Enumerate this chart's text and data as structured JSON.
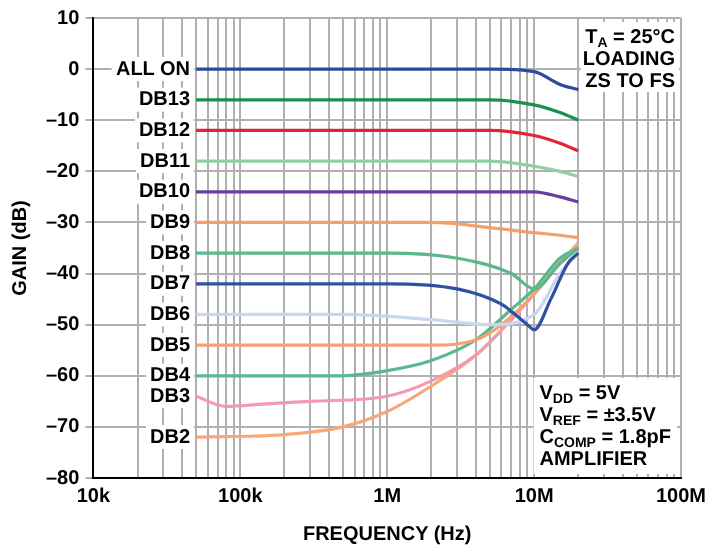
{
  "chart_data": {
    "type": "line",
    "xlabel": "FREQUENCY (Hz)",
    "ylabel": "GAIN (dB)",
    "log": "x",
    "grid": true,
    "legend": false,
    "marker": "none",
    "line_style": "solid",
    "xlim": [
      10000,
      100000000
    ],
    "ylim": [
      -80,
      10
    ],
    "xticks": [
      {
        "value": 10000,
        "label": "10k"
      },
      {
        "value": 20000,
        "label": null
      },
      {
        "value": 30000,
        "label": null
      },
      {
        "value": 40000,
        "label": null
      },
      {
        "value": 50000,
        "label": null
      },
      {
        "value": 60000,
        "label": null
      },
      {
        "value": 70000,
        "label": null
      },
      {
        "value": 80000,
        "label": null
      },
      {
        "value": 90000,
        "label": null
      },
      {
        "value": 100000,
        "label": "100k"
      },
      {
        "value": 200000,
        "label": null
      },
      {
        "value": 300000,
        "label": null
      },
      {
        "value": 400000,
        "label": null
      },
      {
        "value": 500000,
        "label": null
      },
      {
        "value": 600000,
        "label": null
      },
      {
        "value": 700000,
        "label": null
      },
      {
        "value": 800000,
        "label": null
      },
      {
        "value": 900000,
        "label": null
      },
      {
        "value": 1000000,
        "label": "1M"
      },
      {
        "value": 2000000,
        "label": null
      },
      {
        "value": 3000000,
        "label": null
      },
      {
        "value": 4000000,
        "label": null
      },
      {
        "value": 5000000,
        "label": null
      },
      {
        "value": 6000000,
        "label": null
      },
      {
        "value": 7000000,
        "label": null
      },
      {
        "value": 8000000,
        "label": null
      },
      {
        "value": 9000000,
        "label": null
      },
      {
        "value": 10000000,
        "label": "10M"
      },
      {
        "value": 20000000,
        "label": null
      },
      {
        "value": 30000000,
        "label": null
      },
      {
        "value": 40000000,
        "label": null
      },
      {
        "value": 50000000,
        "label": null
      },
      {
        "value": 60000000,
        "label": null
      },
      {
        "value": 70000000,
        "label": null
      },
      {
        "value": 80000000,
        "label": null
      },
      {
        "value": 90000000,
        "label": null
      },
      {
        "value": 100000000,
        "label": "100M"
      }
    ],
    "yticks": [
      {
        "value": -80,
        "label": "–80"
      },
      {
        "value": -70,
        "label": "–70"
      },
      {
        "value": -60,
        "label": "–60"
      },
      {
        "value": -50,
        "label": "–50"
      },
      {
        "value": -40,
        "label": "–40"
      },
      {
        "value": -30,
        "label": "–30"
      },
      {
        "value": -20,
        "label": "–20"
      },
      {
        "value": -10,
        "label": "–10"
      },
      0,
      10
    ],
    "annotations": [
      "T$_{A}$ = 25°C",
      "LOADING",
      "ZS TO FS",
      "V$_{DD}$ = 5V",
      "V$_{REF}$ = ±3.5V",
      "C$_{COMP}$ = 1.8pF",
      "AMPLIFIER"
    ],
    "series": [
      {
        "name": "ALL ON",
        "color": "#2e4a9a",
        "x": [
          50000,
          1000000,
          5000000,
          10000000,
          15000000,
          20000000
        ],
        "values": [
          0,
          0,
          0,
          -0.5,
          -3,
          -4
        ]
      },
      {
        "name": "DB13",
        "color": "#1a9050",
        "x": [
          50000,
          1000000,
          5000000,
          10000000,
          15000000,
          20000000
        ],
        "values": [
          -6,
          -6,
          -6,
          -7,
          -8.5,
          -10
        ]
      },
      {
        "name": "DB12",
        "color": "#e0253a",
        "x": [
          50000,
          1000000,
          5000000,
          10000000,
          15000000,
          20000000
        ],
        "values": [
          -12,
          -12,
          -12,
          -13,
          -14.5,
          -16
        ]
      },
      {
        "name": "DB11",
        "color": "#8fcfa8",
        "x": [
          50000,
          1000000,
          5000000,
          10000000,
          15000000,
          20000000
        ],
        "values": [
          -18,
          -18,
          -18,
          -19,
          -20,
          -21
        ]
      },
      {
        "name": "DB10",
        "color": "#6a3ea0",
        "x": [
          50000,
          1000000,
          5000000,
          10000000,
          15000000,
          20000000
        ],
        "values": [
          -24,
          -24,
          -24,
          -24,
          -25,
          -26
        ]
      },
      {
        "name": "DB9",
        "color": "#f5a06a",
        "x": [
          50000,
          1000000,
          2000000,
          5000000,
          10000000,
          15000000,
          20000000
        ],
        "values": [
          -30,
          -30,
          -30,
          -31,
          -32,
          -32.5,
          -33
        ]
      },
      {
        "name": "DB8",
        "color": "#5cb88a",
        "x": [
          50000,
          1000000,
          3000000,
          7000000,
          10000000,
          15000000,
          20000000
        ],
        "values": [
          -36,
          -36,
          -37,
          -40,
          -43,
          -38,
          -35
        ]
      },
      {
        "name": "DB7",
        "color": "#3050a0",
        "x": [
          50000,
          1000000,
          3000000,
          6000000,
          9000000,
          10000000,
          13000000,
          17000000,
          20000000
        ],
        "values": [
          -42,
          -42,
          -43,
          -46,
          -50,
          -51,
          -45,
          -38,
          -36
        ]
      },
      {
        "name": "DB6",
        "color": "#c8d8ee",
        "x": [
          50000,
          500000,
          2000000,
          5000000,
          10000000,
          15000000,
          20000000
        ],
        "values": [
          -48,
          -48,
          -49,
          -50,
          -48,
          -40,
          -36
        ]
      },
      {
        "name": "DB5",
        "color": "#f7a070",
        "x": [
          50000,
          2000000,
          4000000,
          6000000,
          10000000,
          15000000,
          20000000
        ],
        "values": [
          -54,
          -54,
          -53,
          -50,
          -44,
          -38,
          -35
        ]
      },
      {
        "name": "DB4",
        "color": "#5ab890",
        "x": [
          50000,
          500000,
          1000000,
          2000000,
          4000000,
          7000000,
          10000000,
          15000000,
          20000000
        ],
        "values": [
          -60,
          -60,
          -59,
          -57,
          -53,
          -47,
          -43,
          -37,
          -35
        ]
      },
      {
        "name": "DB3",
        "color": "#f29ab0",
        "x": [
          50000,
          80000,
          150000,
          300000,
          1000000,
          2000000,
          4000000,
          7000000,
          10000000,
          15000000,
          20000000
        ],
        "values": [
          -64,
          -66,
          -65.5,
          -65,
          -64,
          -61,
          -56,
          -49,
          -44,
          -38,
          -35
        ]
      },
      {
        "name": "DB2",
        "color": "#f7a878",
        "x": [
          50000,
          200000,
          500000,
          1000000,
          2000000,
          4000000,
          7000000,
          10000000,
          15000000,
          20000000
        ],
        "values": [
          -72,
          -71.5,
          -70,
          -67,
          -62,
          -56,
          -49,
          -44,
          -38,
          -34
        ]
      }
    ]
  }
}
